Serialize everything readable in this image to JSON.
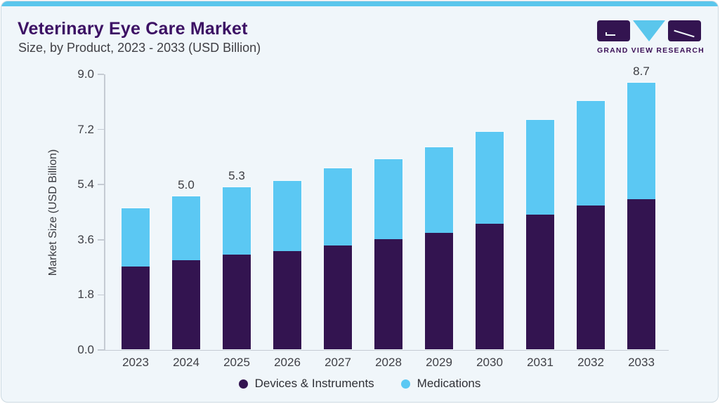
{
  "header": {
    "title": "Veterinary Eye Care Market",
    "subtitle": "Size, by Product, 2023 - 2033 (USD Billion)"
  },
  "logo": {
    "text": "GRAND VIEW RESEARCH",
    "icon": "gvr-logo-icon",
    "colors": {
      "purple": "#331450",
      "blue": "#5ac6ec"
    }
  },
  "chart_data": {
    "type": "bar",
    "stacked": true,
    "title": "Veterinary Eye Care Market",
    "subtitle": "Size, by Product, 2023 - 2033 (USD Billion)",
    "ylabel": "Market Size (USD Billion)",
    "xlabel": "",
    "categories": [
      "2023",
      "2024",
      "2025",
      "2026",
      "2027",
      "2028",
      "2029",
      "2030",
      "2031",
      "2032",
      "2033"
    ],
    "series": [
      {
        "name": "Devices & Instruments",
        "color": "#331450",
        "values": [
          2.7,
          2.9,
          3.1,
          3.2,
          3.4,
          3.6,
          3.8,
          4.1,
          4.4,
          4.7,
          4.9
        ]
      },
      {
        "name": "Medications",
        "color": "#5bc8f3",
        "values": [
          1.9,
          2.1,
          2.2,
          2.3,
          2.5,
          2.6,
          2.8,
          3.0,
          3.1,
          3.4,
          3.8
        ]
      }
    ],
    "totals": [
      4.6,
      5.0,
      5.3,
      5.5,
      5.9,
      6.2,
      6.6,
      7.1,
      7.5,
      8.1,
      8.7
    ],
    "bar_labels": [
      "",
      "5.0",
      "5.3",
      "",
      "",
      "",
      "",
      "",
      "",
      "",
      "8.7"
    ],
    "y_ticks": [
      "9.0",
      "7.2",
      "5.4",
      "3.6",
      "1.8",
      "0.0"
    ],
    "ylim": [
      0,
      9.0
    ],
    "grid": false,
    "legend_position": "bottom"
  }
}
